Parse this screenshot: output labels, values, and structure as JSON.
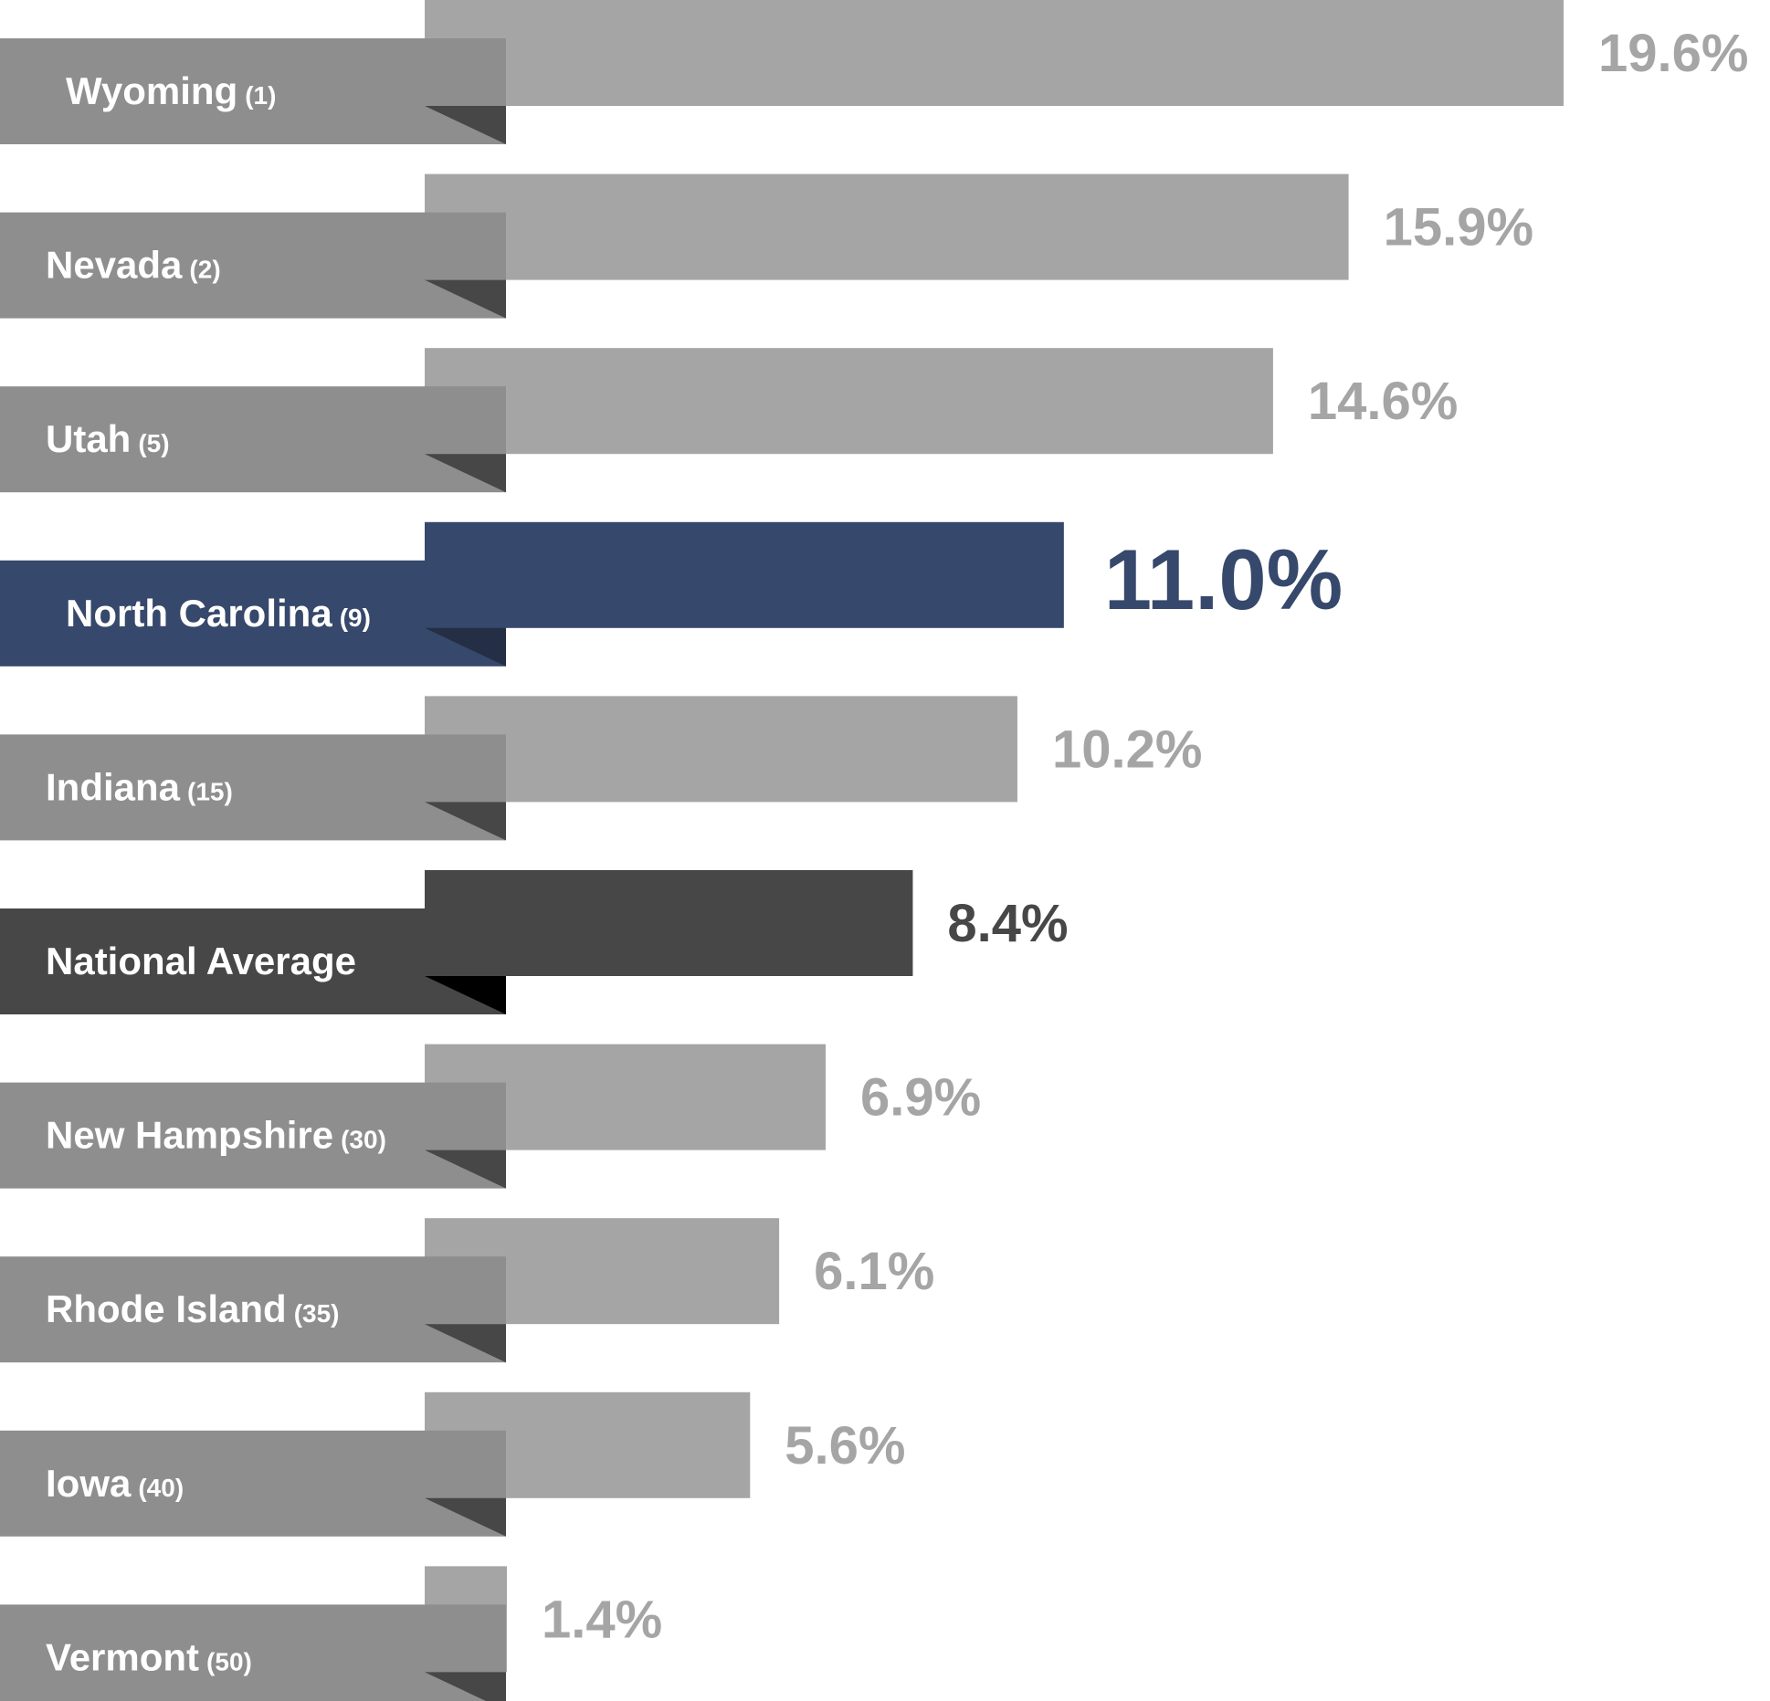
{
  "chart_data": {
    "type": "bar",
    "orientation": "horizontal",
    "title": "",
    "xlabel": "",
    "ylabel": "",
    "grid": false,
    "legend": "none",
    "xlim": [
      0,
      19.6
    ],
    "categories": [
      "Wyoming",
      "Nevada",
      "Utah",
      "North Carolina",
      "Indiana",
      "National Average",
      "New Hampshire",
      "Rhode Island",
      "Iowa",
      "Vermont"
    ],
    "ranks": [
      "(1)",
      "(2)",
      "(5)",
      "(9)",
      "(15)",
      "",
      "(30)",
      "(35)",
      "(40)",
      "(50)"
    ],
    "values": [
      19.6,
      15.9,
      14.6,
      11.0,
      10.2,
      8.4,
      6.9,
      6.1,
      5.6,
      1.4
    ],
    "value_labels": [
      "19.6%",
      "15.9%",
      "14.6%",
      "11.0%",
      "10.2%",
      "8.4%",
      "6.9%",
      "6.1%",
      "5.6%",
      "1.4%"
    ],
    "highlight": [
      "normal",
      "normal",
      "normal",
      "highlight",
      "normal",
      "average",
      "normal",
      "normal",
      "normal",
      "normal"
    ],
    "colors": {
      "normal_bar": "#a5a5a5",
      "normal_label": "#8e8e8e",
      "normal_fold": "#474747",
      "normal_value": "#a5a5a5",
      "highlight_bar": "#36486b",
      "highlight_label": "#36486b",
      "highlight_fold": "#242f46",
      "highlight_value": "#36486b",
      "average_bar": "#474747",
      "average_label": "#474747",
      "average_fold": "#000000",
      "average_value": "#474747"
    }
  }
}
